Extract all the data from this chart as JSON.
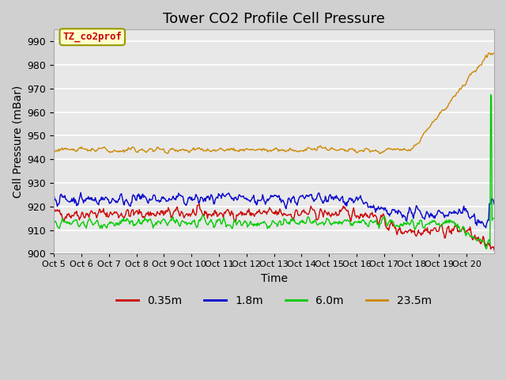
{
  "title": "Tower CO2 Profile Cell Pressure",
  "xlabel": "Time",
  "ylabel": "Cell Pressure (mBar)",
  "ylim": [
    900,
    995
  ],
  "yticks": [
    900,
    910,
    920,
    930,
    940,
    950,
    960,
    970,
    980,
    990
  ],
  "xtick_labels": [
    "Oct 5",
    "Oct 6",
    "Oct 7",
    "Oct 8",
    "Oct 9",
    "Oct 10",
    "Oct 11",
    "Oct 12",
    "Oct 13",
    "Oct 14",
    "Oct 15",
    "Oct 16",
    "Oct 17",
    "Oct 18",
    "Oct 19",
    "Oct 20"
  ],
  "legend_labels": [
    "0.35m",
    "1.8m",
    "6.0m",
    "23.5m"
  ],
  "colors": [
    "#cc0000",
    "#0000cc",
    "#00cc00",
    "#cc8800"
  ],
  "annotation_text": "TZ_co2prof",
  "annotation_bg": "#ffffcc",
  "annotation_border": "#999900",
  "annotation_text_color": "#cc0000",
  "plot_bg_color": "#e8e8e8",
  "title_fontsize": 13,
  "axis_fontsize": 10,
  "tick_fontsize": 9
}
